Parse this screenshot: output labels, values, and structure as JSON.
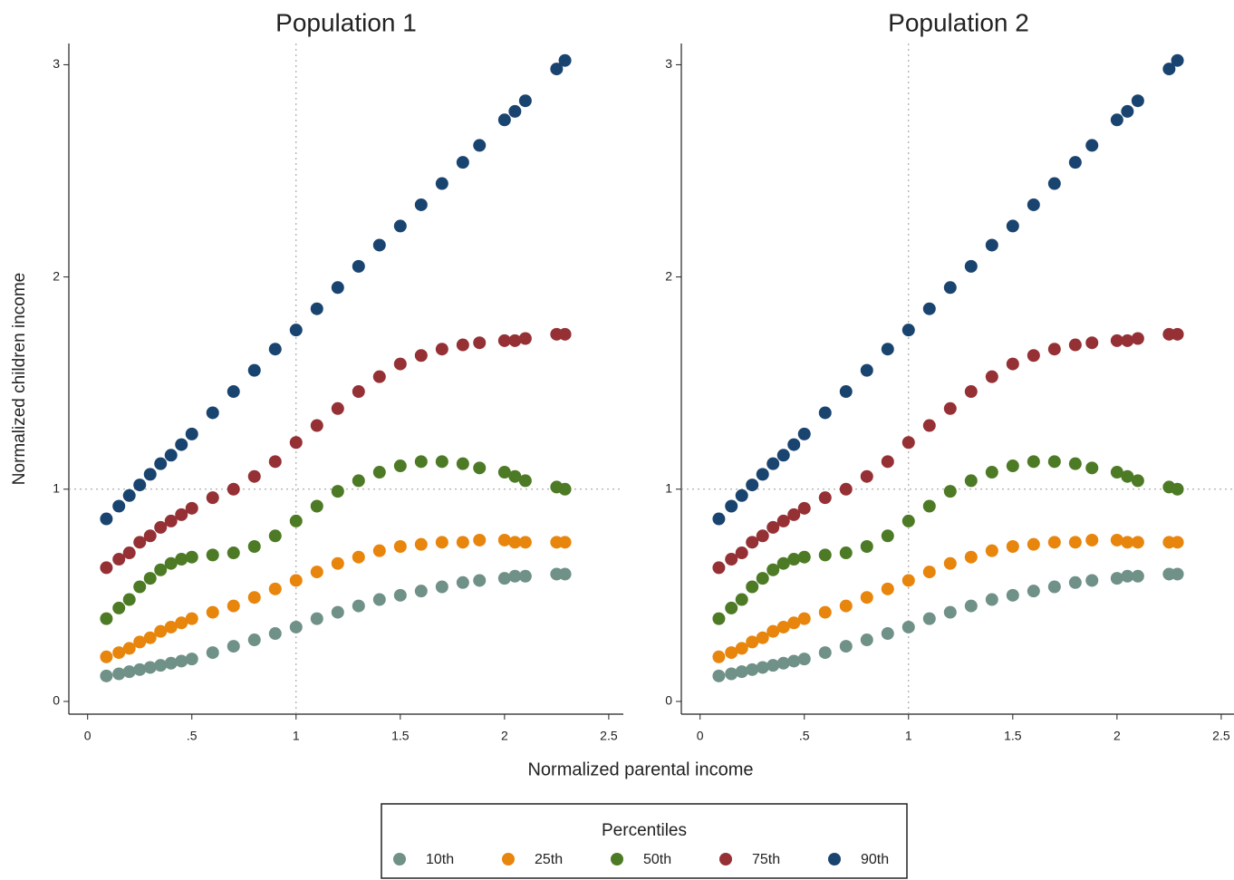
{
  "chart_data": [
    {
      "type": "scatter",
      "title": "Population 1",
      "x_label": "Normalized parental income",
      "y_label": "Normalized children income",
      "x": [
        0.09,
        0.15,
        0.2,
        0.25,
        0.3,
        0.35,
        0.4,
        0.45,
        0.5,
        0.6,
        0.7,
        0.8,
        0.9,
        1.0,
        1.1,
        1.2,
        1.3,
        1.4,
        1.5,
        1.6,
        1.7,
        1.8,
        1.88,
        2.0,
        2.05,
        2.1,
        2.25,
        2.29
      ],
      "series": [
        {
          "name": "10th",
          "color": "#6f9187",
          "values": [
            0.12,
            0.13,
            0.14,
            0.15,
            0.16,
            0.17,
            0.18,
            0.19,
            0.2,
            0.23,
            0.26,
            0.29,
            0.32,
            0.35,
            0.39,
            0.42,
            0.45,
            0.48,
            0.5,
            0.52,
            0.54,
            0.56,
            0.57,
            0.58,
            0.59,
            0.59,
            0.6,
            0.6
          ]
        },
        {
          "name": "25th",
          "color": "#e8850c",
          "values": [
            0.21,
            0.23,
            0.25,
            0.28,
            0.3,
            0.33,
            0.35,
            0.37,
            0.39,
            0.42,
            0.45,
            0.49,
            0.53,
            0.57,
            0.61,
            0.65,
            0.68,
            0.71,
            0.73,
            0.74,
            0.75,
            0.75,
            0.76,
            0.76,
            0.75,
            0.75,
            0.75,
            0.75
          ]
        },
        {
          "name": "50th",
          "color": "#4d7a25",
          "values": [
            0.39,
            0.44,
            0.48,
            0.54,
            0.58,
            0.62,
            0.65,
            0.67,
            0.68,
            0.69,
            0.7,
            0.73,
            0.78,
            0.85,
            0.92,
            0.99,
            1.04,
            1.08,
            1.11,
            1.13,
            1.13,
            1.12,
            1.1,
            1.08,
            1.06,
            1.04,
            1.01,
            1.0
          ]
        },
        {
          "name": "75th",
          "color": "#953035",
          "values": [
            0.63,
            0.67,
            0.7,
            0.75,
            0.78,
            0.82,
            0.85,
            0.88,
            0.91,
            0.96,
            1.0,
            1.06,
            1.13,
            1.22,
            1.3,
            1.38,
            1.46,
            1.53,
            1.59,
            1.63,
            1.66,
            1.68,
            1.69,
            1.7,
            1.7,
            1.71,
            1.73,
            1.73
          ]
        },
        {
          "name": "90th",
          "color": "#1a4470",
          "values": [
            0.86,
            0.92,
            0.97,
            1.02,
            1.07,
            1.12,
            1.16,
            1.21,
            1.26,
            1.36,
            1.46,
            1.56,
            1.66,
            1.75,
            1.85,
            1.95,
            2.05,
            2.15,
            2.24,
            2.34,
            2.44,
            2.54,
            2.62,
            2.74,
            2.78,
            2.83,
            2.98,
            3.02
          ]
        }
      ],
      "xlim": [
        -0.09,
        2.57
      ],
      "ylim": [
        -0.06,
        3.1
      ],
      "xticks": [
        0,
        {
          "value": 0.5,
          "label": ".5"
        },
        1,
        1.5,
        2,
        2.5
      ],
      "yticks": [
        0,
        1,
        2,
        3
      ],
      "reference_lines": {
        "x": 1,
        "y": 1
      },
      "legend_title": "Percentiles"
    },
    {
      "type": "scatter",
      "title": "Population 2",
      "x": [
        0.09,
        0.15,
        0.2,
        0.25,
        0.3,
        0.35,
        0.4,
        0.45,
        0.5,
        0.6,
        0.7,
        0.8,
        0.9,
        1.0,
        1.1,
        1.2,
        1.3,
        1.4,
        1.5,
        1.6,
        1.7,
        1.8,
        1.88,
        2.0,
        2.05,
        2.1,
        2.25,
        2.29
      ],
      "series": [
        {
          "name": "10th",
          "color": "#6f9187",
          "values": [
            0.12,
            0.13,
            0.14,
            0.15,
            0.16,
            0.17,
            0.18,
            0.19,
            0.2,
            0.23,
            0.26,
            0.29,
            0.32,
            0.35,
            0.39,
            0.42,
            0.45,
            0.48,
            0.5,
            0.52,
            0.54,
            0.56,
            0.57,
            0.58,
            0.59,
            0.59,
            0.6,
            0.6
          ]
        },
        {
          "name": "25th",
          "color": "#e8850c",
          "values": [
            0.21,
            0.23,
            0.25,
            0.28,
            0.3,
            0.33,
            0.35,
            0.37,
            0.39,
            0.42,
            0.45,
            0.49,
            0.53,
            0.57,
            0.61,
            0.65,
            0.68,
            0.71,
            0.73,
            0.74,
            0.75,
            0.75,
            0.76,
            0.76,
            0.75,
            0.75,
            0.75,
            0.75
          ]
        },
        {
          "name": "50th",
          "color": "#4d7a25",
          "values": [
            0.39,
            0.44,
            0.48,
            0.54,
            0.58,
            0.62,
            0.65,
            0.67,
            0.68,
            0.69,
            0.7,
            0.73,
            0.78,
            0.85,
            0.92,
            0.99,
            1.04,
            1.08,
            1.11,
            1.13,
            1.13,
            1.12,
            1.1,
            1.08,
            1.06,
            1.04,
            1.01,
            1.0
          ]
        },
        {
          "name": "75th",
          "color": "#953035",
          "values": [
            0.63,
            0.67,
            0.7,
            0.75,
            0.78,
            0.82,
            0.85,
            0.88,
            0.91,
            0.96,
            1.0,
            1.06,
            1.13,
            1.22,
            1.3,
            1.38,
            1.46,
            1.53,
            1.59,
            1.63,
            1.66,
            1.68,
            1.69,
            1.7,
            1.7,
            1.71,
            1.73,
            1.73
          ]
        },
        {
          "name": "90th",
          "color": "#1a4470",
          "values": [
            0.86,
            0.92,
            0.97,
            1.02,
            1.07,
            1.12,
            1.16,
            1.21,
            1.26,
            1.36,
            1.46,
            1.56,
            1.66,
            1.75,
            1.85,
            1.95,
            2.05,
            2.15,
            2.24,
            2.34,
            2.44,
            2.54,
            2.62,
            2.74,
            2.78,
            2.83,
            2.98,
            3.02
          ]
        }
      ],
      "xlim": [
        -0.09,
        2.57
      ],
      "ylim": [
        -0.06,
        3.1
      ],
      "xticks": [
        0,
        {
          "value": 0.5,
          "label": ".5"
        },
        1,
        1.5,
        2,
        2.5
      ],
      "yticks": [
        0,
        1,
        2,
        3
      ],
      "reference_lines": {
        "x": 1,
        "y": 1
      }
    }
  ]
}
